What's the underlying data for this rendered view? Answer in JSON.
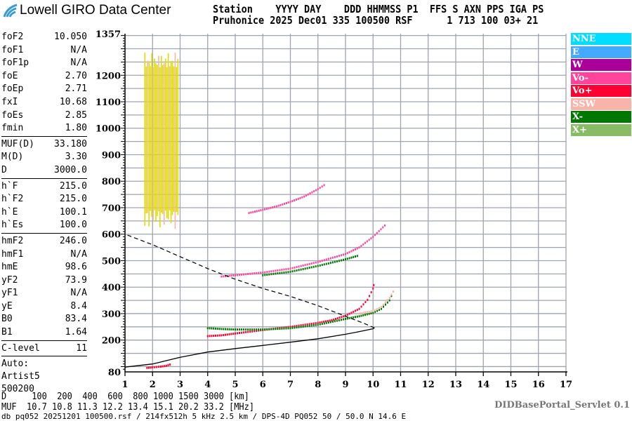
{
  "header": {
    "logo_text": "Lowell GIRO Data Center",
    "line1": "Station    YYYY DAY    DDD HHMMSS P1  FFS S AXN PPS IGA PS",
    "line2": "Pruhonice 2025 Dec01 335 100500 RSF      1 713 100 03+ 21"
  },
  "params": {
    "group1": [
      {
        "k": "foF2",
        "v": "10.050"
      },
      {
        "k": "foF1",
        "v": "N/A"
      },
      {
        "k": "foF1p",
        "v": "N/A"
      },
      {
        "k": "foE",
        "v": "2.70"
      },
      {
        "k": "foEp",
        "v": "2.71"
      },
      {
        "k": "fxI",
        "v": "10.68"
      },
      {
        "k": "foEs",
        "v": "2.85"
      },
      {
        "k": "fmin",
        "v": "1.80"
      }
    ],
    "group2": [
      {
        "k": "MUF(D)",
        "v": "33.180"
      },
      {
        "k": "M(D)",
        "v": "3.30"
      },
      {
        "k": "D",
        "v": "3000.0"
      }
    ],
    "group3": [
      {
        "k": "h`F",
        "v": "215.0"
      },
      {
        "k": "h`F2",
        "v": "215.0"
      },
      {
        "k": "h`E",
        "v": "100.1"
      },
      {
        "k": "h`Es",
        "v": "100.0"
      }
    ],
    "group4": [
      {
        "k": "hmF2",
        "v": "246.0"
      },
      {
        "k": "hmF1",
        "v": "N/A"
      },
      {
        "k": "hmE",
        "v": "98.6"
      },
      {
        "k": "yF2",
        "v": "73.9"
      },
      {
        "k": "yF1",
        "v": "N/A"
      },
      {
        "k": "yE",
        "v": "8.4"
      },
      {
        "k": "B0",
        "v": "83.4"
      },
      {
        "k": "B1",
        "v": "1.64"
      }
    ],
    "group5": [
      {
        "k": "C-level",
        "v": "11"
      }
    ],
    "auto": [
      "Auto:",
      "Artist5",
      "500200"
    ]
  },
  "legend": [
    {
      "label": "NNE",
      "color": "#00ddff"
    },
    {
      "label": "E",
      "color": "#44aaff"
    },
    {
      "label": "W",
      "color": "#aa0099"
    },
    {
      "label": "Vo-",
      "color": "#ff4499"
    },
    {
      "label": "Vo+",
      "color": "#ff0033"
    },
    {
      "label": "SSW",
      "color": "#f8b4a8"
    },
    {
      "label": "X-",
      "color": "#007700"
    },
    {
      "label": "X+",
      "color": "#88bb66"
    }
  ],
  "bottom": {
    "d_row": "D     100  200  400  600  800 1000 1500 3000 [km]",
    "muf_row": "MUF  10.7 10.8 11.3 12.2 13.4 15.1 20.2 33.2 [MHz]",
    "footer": "db pq052 20251201 100500.rsf / 214fx512h 5 kHz 2.5 km / DPS-4D PQ052 50 / 50.0 N 14.6 E",
    "servlet": "DIDBasePortal_Servlet 0.1"
  },
  "chart_data": {
    "type": "scatter",
    "xlim": [
      1,
      17
    ],
    "ylim": [
      80,
      1357
    ],
    "x_ticks": [
      "1",
      "2",
      "3",
      "4",
      "5",
      "6",
      "7",
      "8",
      "9",
      "10",
      "11",
      "12",
      "13",
      "14",
      "15",
      "16",
      "17"
    ],
    "y_ticks": [
      "1357",
      "1200",
      "1100",
      "1000",
      "900",
      "800",
      "700",
      "600",
      "500",
      "400",
      "300",
      "200",
      "80"
    ],
    "y_tick_values": [
      1357,
      1200,
      1100,
      1000,
      900,
      800,
      700,
      600,
      500,
      400,
      300,
      200,
      80
    ],
    "grid": true,
    "legend_position": "right",
    "traces": [
      {
        "legend": "Vo+",
        "color": "#ff0033",
        "points": [
          [
            4.0,
            215
          ],
          [
            4.5,
            218
          ],
          [
            5,
            225
          ],
          [
            6,
            238
          ],
          [
            7,
            250
          ],
          [
            8,
            265
          ],
          [
            8.5,
            275
          ],
          [
            9,
            292
          ],
          [
            9.5,
            318
          ],
          [
            9.8,
            352
          ],
          [
            10.0,
            395
          ],
          [
            10.05,
            420
          ]
        ]
      },
      {
        "legend": "X-",
        "color": "#007700",
        "points": [
          [
            4.0,
            245
          ],
          [
            4.5,
            242
          ],
          [
            5,
            240
          ],
          [
            6,
            240
          ],
          [
            7,
            245
          ],
          [
            8,
            258
          ],
          [
            9,
            280
          ],
          [
            9.5,
            290
          ],
          [
            10,
            303
          ],
          [
            10.3,
            318
          ],
          [
            10.6,
            350
          ],
          [
            10.8,
            400
          ]
        ]
      },
      {
        "legend": "Vo-",
        "color": "#ff4499",
        "points": [
          [
            4.5,
            440
          ],
          [
            5,
            445
          ],
          [
            6,
            455
          ],
          [
            7,
            470
          ],
          [
            8,
            495
          ],
          [
            9,
            525
          ],
          [
            9.5,
            550
          ],
          [
            10,
            590
          ],
          [
            10.5,
            640
          ]
        ]
      },
      {
        "legend": "X-",
        "color": "#007700",
        "points": [
          [
            6,
            445
          ],
          [
            7,
            458
          ],
          [
            8,
            480
          ],
          [
            9,
            505
          ],
          [
            9.5,
            520
          ]
        ]
      },
      {
        "legend": "Vo-",
        "color": "#ff4499",
        "points": [
          [
            5.5,
            680
          ],
          [
            6,
            692
          ],
          [
            6.5,
            705
          ],
          [
            7,
            722
          ],
          [
            7.5,
            742
          ],
          [
            8,
            770
          ],
          [
            8.3,
            790
          ]
        ]
      },
      {
        "legend": "Vo+",
        "color": "#ff0033",
        "points": [
          [
            1.8,
            95
          ],
          [
            2.0,
            97
          ],
          [
            2.3,
            100
          ],
          [
            2.5,
            103
          ],
          [
            2.7,
            110
          ]
        ]
      },
      {
        "legend": "SSW",
        "color": "#f8b4a8",
        "points": [
          [
            9.5,
            300
          ],
          [
            10,
            310
          ],
          [
            10.3,
            325
          ],
          [
            10.6,
            360
          ],
          [
            10.8,
            395
          ]
        ]
      }
    ],
    "es_spread": {
      "color": "#dddd00",
      "f_range": [
        1.7,
        2.9
      ],
      "h_range": [
        620,
        1290
      ]
    },
    "profile_solid": [
      [
        1,
        98
      ],
      [
        2,
        110
      ],
      [
        3,
        135
      ],
      [
        4,
        155
      ],
      [
        5,
        168
      ],
      [
        6,
        180
      ],
      [
        7,
        192
      ],
      [
        8,
        205
      ],
      [
        9,
        222
      ],
      [
        9.5,
        232
      ],
      [
        10,
        243
      ],
      [
        10.05,
        246
      ]
    ],
    "profile_dashed": [
      [
        10.05,
        246
      ],
      [
        9.7,
        262
      ],
      [
        9,
        290
      ],
      [
        8,
        330
      ],
      [
        7,
        365
      ],
      [
        6,
        395
      ],
      [
        5,
        430
      ],
      [
        4,
        470
      ],
      [
        3,
        515
      ],
      [
        2,
        560
      ],
      [
        1,
        600
      ]
    ]
  }
}
